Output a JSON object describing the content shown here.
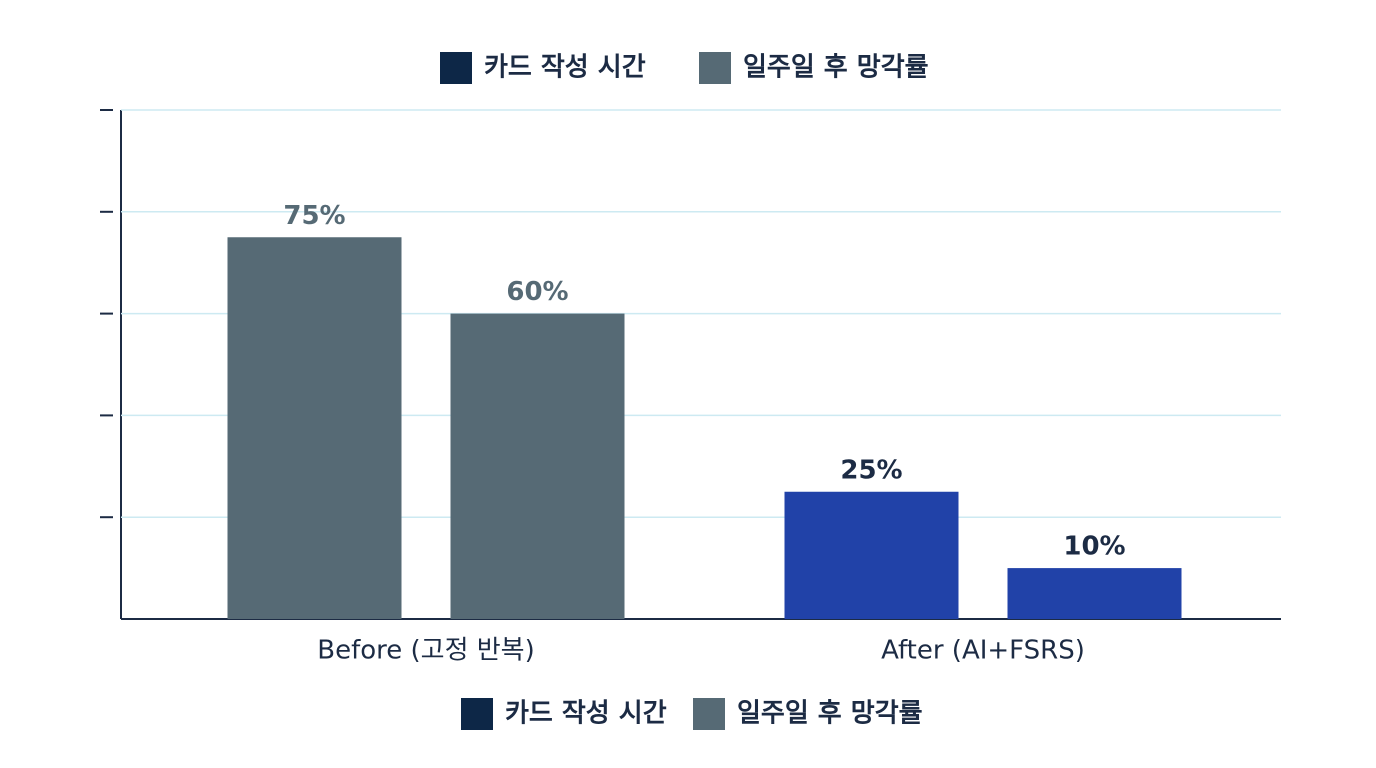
{
  "chart_data": {
    "type": "bar",
    "categories": [
      "Before (고정 반복)",
      "After (AI+FSRS)"
    ],
    "category_colors": [
      "#566a75",
      "#2142a8"
    ],
    "series": [
      {
        "name": "카드 작성 시간",
        "color": "#0d2747",
        "values": [
          75,
          25
        ],
        "value_labels": [
          "75%",
          "25%"
        ]
      },
      {
        "name": "일주일 후 망각률",
        "color": "#566a75",
        "values": [
          60,
          10
        ],
        "value_labels": [
          "60%",
          "10%"
        ]
      }
    ],
    "ylim": [
      0,
      100
    ],
    "yticks": [
      20,
      40,
      60,
      80,
      100
    ],
    "grid": true
  }
}
